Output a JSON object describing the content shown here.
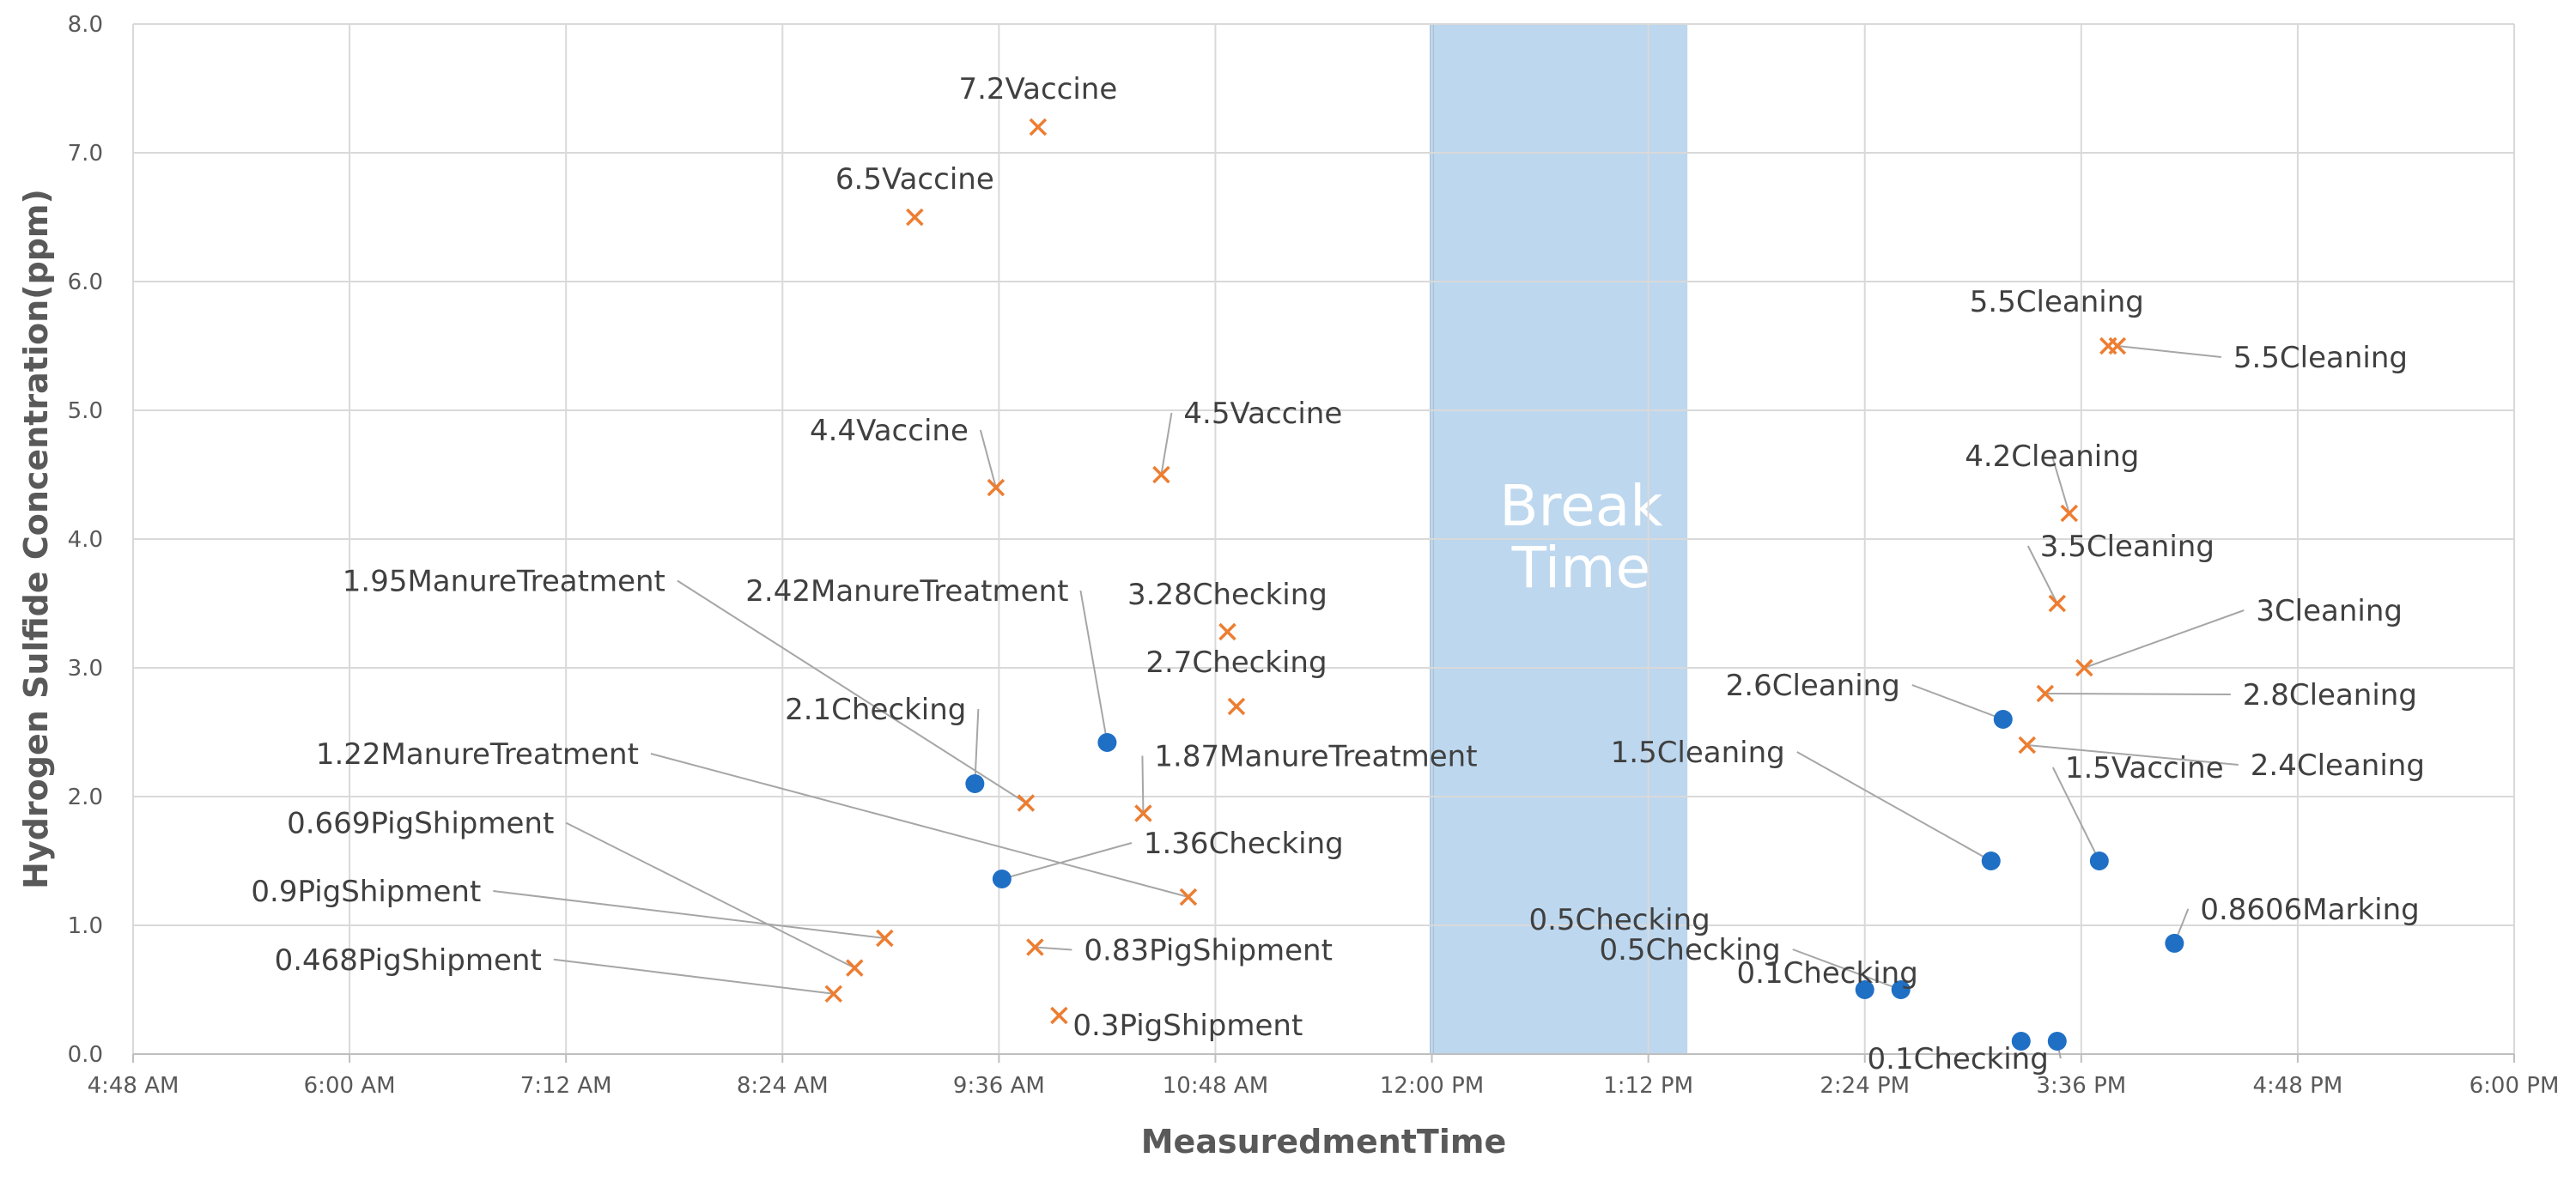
{
  "chart_data": {
    "type": "scatter",
    "title": "",
    "xlabel": "MeasuredmentTime",
    "ylabel": "Hydrogen Sulfide Concentration(ppm)",
    "xlim": [
      "4:48 AM",
      "6:00 PM"
    ],
    "ylim": [
      0,
      8
    ],
    "x_ticks": [
      "4:48 AM",
      "6:00 AM",
      "7:12 AM",
      "8:24 AM",
      "9:36 AM",
      "10:48 AM",
      "12:00 PM",
      "1:12 PM",
      "2:24 PM",
      "3:36 PM",
      "4:48 PM",
      "6:00 PM"
    ],
    "y_ticks": [
      "0.0",
      "1.0",
      "2.0",
      "3.0",
      "4.0",
      "5.0",
      "6.0",
      "7.0",
      "8.0"
    ],
    "grid": true,
    "legend": "none",
    "break_band": {
      "label_lines": [
        "Break",
        "Time"
      ],
      "x_start": "12:00 PM",
      "x_end": "1:25 PM",
      "color": "#bdd7ee"
    },
    "series": [
      {
        "marker": "circle",
        "color": "#1f6fc5",
        "points": [
          {
            "x": "9:28 AM",
            "y": 2.1,
            "label": "2.1Checking"
          },
          {
            "x": "9:37 AM",
            "y": 1.36,
            "label": "1.36Checking"
          },
          {
            "x": "10:12 AM",
            "y": 2.42,
            "label": "2.42ManureTreatment"
          },
          {
            "x": "2:24 PM",
            "y": 0.5,
            "label": "0.5Checking"
          },
          {
            "x": "2:36 PM",
            "y": 0.5,
            "label": "0.5Checking"
          },
          {
            "x": "3:06 PM",
            "y": 1.5,
            "label": "1.5Cleaning"
          },
          {
            "x": "3:10 PM",
            "y": 2.6,
            "label": "2.6Cleaning"
          },
          {
            "x": "3:16 PM",
            "y": 0.1,
            "label": "0.1Checking"
          },
          {
            "x": "3:28 PM",
            "y": 0.1,
            "label": "0.1Checking"
          },
          {
            "x": "3:42 PM",
            "y": 1.5,
            "label": "1.5Vaccine"
          },
          {
            "x": "4:07 PM",
            "y": 0.8606,
            "label": "0.8606Marking"
          }
        ]
      },
      {
        "marker": "x",
        "color": "#ed7d31",
        "points": [
          {
            "x": "8:41 AM",
            "y": 0.468,
            "label": "0.468PigShipment"
          },
          {
            "x": "8:48 AM",
            "y": 0.669,
            "label": "0.669PigShipment"
          },
          {
            "x": "8:58 AM",
            "y": 0.9,
            "label": "0.9PigShipment"
          },
          {
            "x": "9:08 AM",
            "y": 6.5,
            "label": "6.5Vaccine"
          },
          {
            "x": "9:35 AM",
            "y": 4.4,
            "label": "4.4Vaccine"
          },
          {
            "x": "9:45 AM",
            "y": 1.95,
            "label": "1.95ManureTreatment"
          },
          {
            "x": "9:48 AM",
            "y": 0.83,
            "label": "0.83PigShipment"
          },
          {
            "x": "9:49 AM",
            "y": 7.2,
            "label": "7.2Vaccine"
          },
          {
            "x": "9:56 AM",
            "y": 0.3,
            "label": "0.3PigShipment"
          },
          {
            "x": "10:24 AM",
            "y": 1.87,
            "label": "1.87ManureTreatment"
          },
          {
            "x": "10:30 AM",
            "y": 4.5,
            "label": "4.5Vaccine"
          },
          {
            "x": "10:39 AM",
            "y": 1.22,
            "label": "1.22ManureTreatment"
          },
          {
            "x": "10:52 AM",
            "y": 3.28,
            "label": "3.28Checking"
          },
          {
            "x": "10:55 AM",
            "y": 2.7,
            "label": "2.7Checking"
          },
          {
            "x": "3:18 PM",
            "y": 2.4,
            "label": "2.4Cleaning"
          },
          {
            "x": "3:24 PM",
            "y": 2.8,
            "label": "2.8Cleaning"
          },
          {
            "x": "3:28 PM",
            "y": 3.5,
            "label": "3.5Cleaning"
          },
          {
            "x": "3:32 PM",
            "y": 4.2,
            "label": "4.2Cleaning"
          },
          {
            "x": "3:37 PM",
            "y": 3.0,
            "label": "3Cleaning"
          },
          {
            "x": "3:45 PM",
            "y": 5.5,
            "label": "5.5Cleaning"
          },
          {
            "x": "3:48 PM",
            "y": 5.5,
            "label": "5.5Cleaning"
          }
        ]
      }
    ]
  }
}
